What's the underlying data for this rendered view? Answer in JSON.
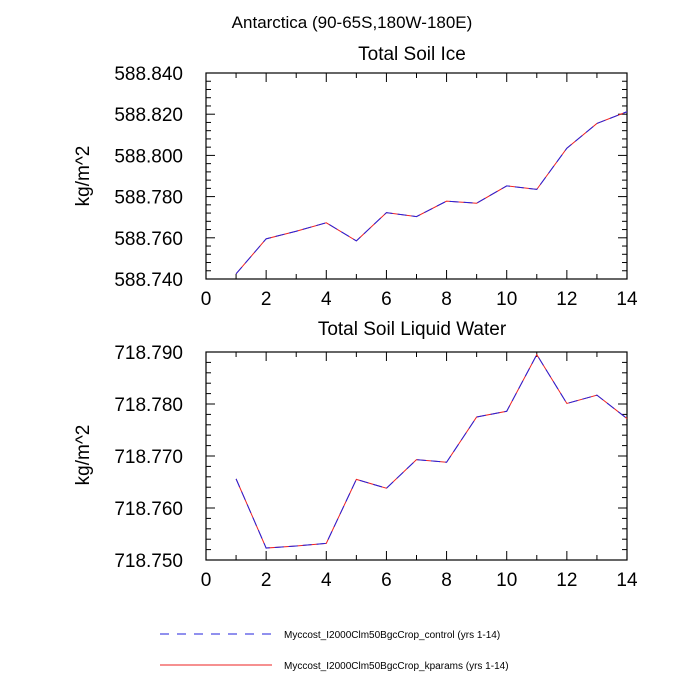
{
  "figure": {
    "title": "Antarctica (90-65S,180W-180E)",
    "legend": [
      {
        "label": "Myccost_I2000Clm50BgcCrop_control (yrs 1-14)",
        "color": "#2222dd",
        "dash": true
      },
      {
        "label": "Myccost_I2000Clm50BgcCrop_kparams (yrs 1-14)",
        "color": "#ee2222",
        "dash": false
      }
    ]
  },
  "chart_data": [
    {
      "type": "line",
      "title": "Total Soil Ice",
      "xlabel": "",
      "ylabel": "kg/m^2",
      "xlim": [
        0,
        14
      ],
      "ylim": [
        588.74,
        588.84
      ],
      "xticks": [
        "0",
        "2",
        "4",
        "6",
        "8",
        "10",
        "12",
        "14"
      ],
      "yticks": [
        "588.740",
        "588.760",
        "588.780",
        "588.800",
        "588.820",
        "588.840"
      ],
      "x": [
        1,
        2,
        3,
        4,
        5,
        6,
        7,
        8,
        9,
        10,
        11,
        12,
        13,
        14
      ],
      "series": [
        {
          "name": "Myccost_I2000Clm50BgcCrop_control (yrs 1-14)",
          "values": [
            588.7425,
            588.7595,
            588.7632,
            588.7673,
            588.7585,
            588.7722,
            588.7703,
            588.7778,
            588.7768,
            588.7852,
            588.7835,
            588.8035,
            588.8155,
            588.8212
          ]
        },
        {
          "name": "Myccost_I2000Clm50BgcCrop_kparams (yrs 1-14)",
          "values": [
            588.7425,
            588.7595,
            588.7632,
            588.7673,
            588.7585,
            588.7722,
            588.7703,
            588.7778,
            588.7768,
            588.7852,
            588.7835,
            588.8035,
            588.8155,
            588.8212
          ]
        }
      ]
    },
    {
      "type": "line",
      "title": "Total Soil Liquid Water",
      "xlabel": "",
      "ylabel": "kg/m^2",
      "xlim": [
        0,
        14
      ],
      "ylim": [
        718.75,
        718.79
      ],
      "xticks": [
        "0",
        "2",
        "4",
        "6",
        "8",
        "10",
        "12",
        "14"
      ],
      "yticks": [
        "718.750",
        "718.760",
        "718.770",
        "718.780",
        "718.790"
      ],
      "x": [
        1,
        2,
        3,
        4,
        5,
        6,
        7,
        8,
        9,
        10,
        11,
        12,
        13,
        14
      ],
      "series": [
        {
          "name": "Myccost_I2000Clm50BgcCrop_control (yrs 1-14)",
          "values": [
            718.7656,
            718.7523,
            718.7527,
            718.7532,
            718.7655,
            718.7638,
            718.7693,
            718.7688,
            718.7775,
            718.7786,
            718.7895,
            718.7801,
            718.7817,
            718.7772
          ]
        },
        {
          "name": "Myccost_I2000Clm50BgcCrop_kparams (yrs 1-14)",
          "values": [
            718.7656,
            718.7523,
            718.7527,
            718.7532,
            718.7655,
            718.7638,
            718.7693,
            718.7688,
            718.7775,
            718.7786,
            718.7895,
            718.7801,
            718.7817,
            718.7772
          ]
        }
      ]
    }
  ]
}
